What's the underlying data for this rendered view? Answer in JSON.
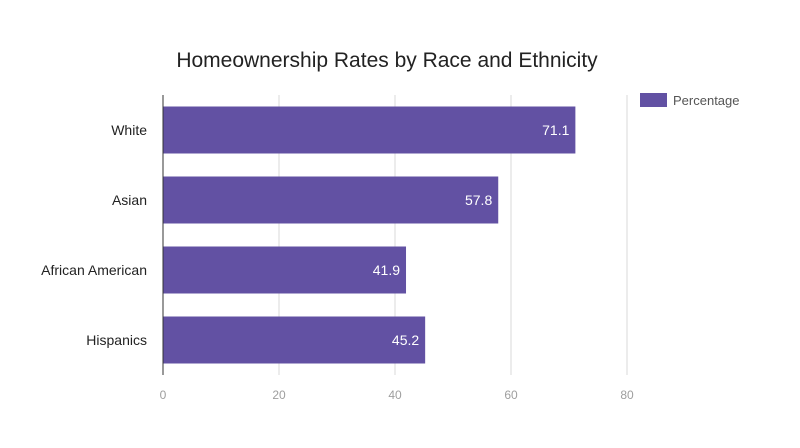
{
  "chart_data": {
    "type": "bar",
    "orientation": "horizontal",
    "title": "Homeownership Rates by Race and Ethnicity",
    "categories": [
      "White",
      "Asian",
      "African American",
      "Hispanics"
    ],
    "series": [
      {
        "name": "Percentage",
        "values": [
          71.1,
          57.8,
          41.9,
          45.2
        ],
        "color": "#6251a3"
      }
    ],
    "xlim": [
      0,
      80
    ],
    "x_ticks": [
      0,
      20,
      40,
      60,
      80
    ],
    "grid": true,
    "legend_position": "top-right",
    "data_labels": true
  }
}
